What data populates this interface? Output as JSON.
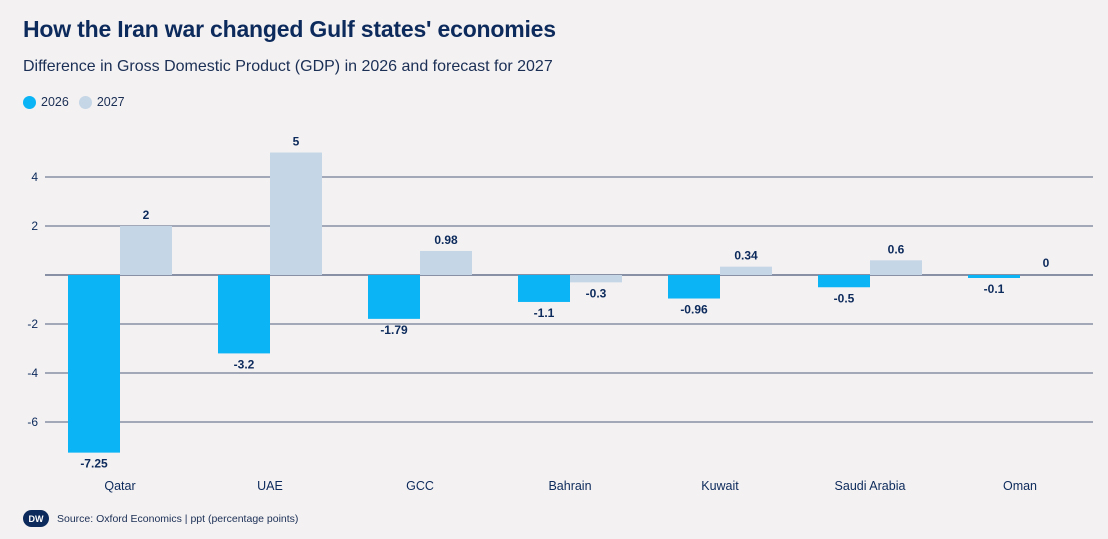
{
  "title": "How the Iran war changed Gulf states' economies",
  "subtitle": "Difference in Gross Domestic Product (GDP) in 2026 and forecast for 2027",
  "footer": {
    "logo": "DW",
    "source": "Source: Oxford Economics | ppt (percentage points)"
  },
  "colors": {
    "s2026": "#0ab4f5",
    "s2027": "#c5d6e6",
    "text": "#0c2a5b",
    "grid": "#1b2f55"
  },
  "chart_data": {
    "type": "bar",
    "categories": [
      "Qatar",
      "UAE",
      "GCC",
      "Bahrain",
      "Kuwait",
      "Saudi Arabia",
      "Oman"
    ],
    "series": [
      {
        "name": "2026",
        "values": [
          -7.25,
          -3.2,
          -1.79,
          -1.1,
          -0.96,
          -0.5,
          -0.1
        ]
      },
      {
        "name": "2027",
        "values": [
          2,
          5,
          0.98,
          -0.3,
          0.34,
          0.6,
          0
        ]
      }
    ],
    "data_labels": [
      [
        "-7.25",
        "-3.2",
        "-1.79",
        "-1.1",
        "-0.96",
        "-0.5",
        "-0.1"
      ],
      [
        "2",
        "5",
        "0.98",
        "-0.3",
        "0.34",
        "0.6",
        "0"
      ]
    ],
    "yticks": [
      4,
      2,
      -2,
      -4,
      -6
    ],
    "ytick_labels": [
      "4",
      "2",
      "-2",
      "-4",
      "-6"
    ],
    "ylim": [
      -7.4,
      5.3
    ],
    "grid": true,
    "legend": "top-left"
  }
}
